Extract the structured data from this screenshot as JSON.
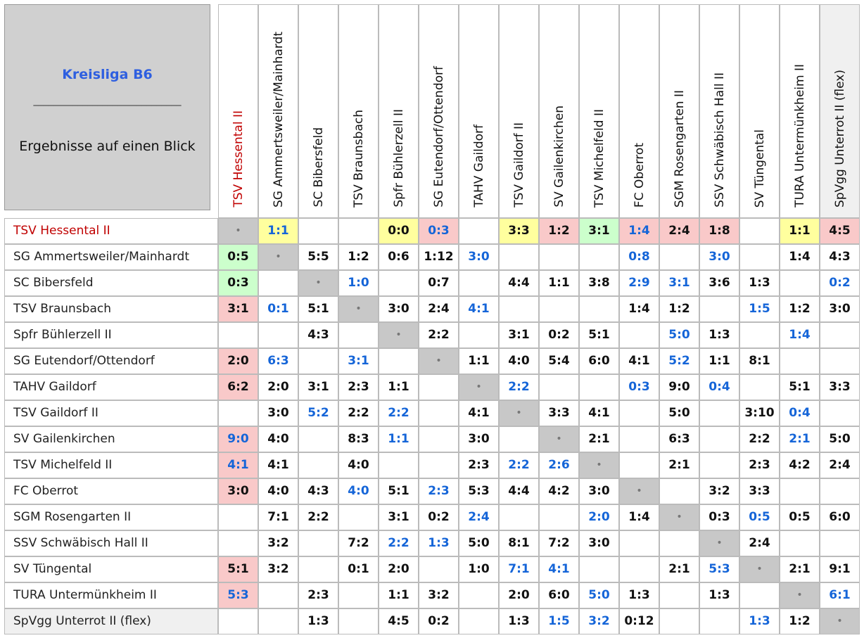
{
  "header": {
    "title": "Kreisliga B6",
    "rule": "______________________________",
    "subtitle": "Ergebnisse auf einen Blick"
  },
  "teams": [
    "TSV Hessental II",
    "SG Ammertsweiler/Mainhardt",
    "SC Bibersfeld",
    "TSV Braunsbach",
    "Spfr Bühlerzell II",
    "SG Eutendorf/Ottendorf",
    "TAHV Gaildorf",
    "TSV Gaildorf II",
    "SV Gailenkirchen",
    "TSV Michelfeld II",
    "FC Oberrot",
    "SGM Rosengarten II",
    "SSV Schwäbisch Hall II",
    "SV Tüngental",
    "TURA Untermünkheim II",
    "SpVgg Unterrot II (flex)"
  ],
  "rows": [
    [
      "•",
      {
        "score": "1:1",
        "color": "#1565d8",
        "bg": "#ffff9e"
      },
      null,
      null,
      {
        "score": "0:0",
        "bg": "#ffff9e"
      },
      {
        "score": "0:3",
        "color": "#1565d8",
        "bg": "#f9c9c9"
      },
      null,
      {
        "score": "3:3",
        "bg": "#ffff9e"
      },
      {
        "score": "1:2",
        "bg": "#f9c9c9"
      },
      {
        "score": "3:1",
        "bg": "#ccffcc"
      },
      {
        "score": "1:4",
        "color": "#1565d8",
        "bg": "#f9c9c9"
      },
      {
        "score": "2:4",
        "bg": "#f9c9c9"
      },
      {
        "score": "1:8",
        "bg": "#f9c9c9"
      },
      null,
      {
        "score": "1:1",
        "bg": "#ffff9e"
      },
      {
        "score": "4:5",
        "bg": "#f9c9c9"
      }
    ],
    [
      {
        "score": "0:5",
        "bg": "#ccffcc"
      },
      "•",
      "5:5",
      "1:2",
      "0:6",
      "1:12",
      {
        "score": "3:0",
        "color": "#1565d8"
      },
      null,
      null,
      null,
      {
        "score": "0:8",
        "color": "#1565d8"
      },
      null,
      {
        "score": "3:0",
        "color": "#1565d8"
      },
      null,
      "1:4",
      "4:3"
    ],
    [
      {
        "score": "0:3",
        "bg": "#ccffcc"
      },
      null,
      "•",
      {
        "score": "1:0",
        "color": "#1565d8"
      },
      null,
      "0:7",
      null,
      "4:4",
      "1:1",
      "3:8",
      {
        "score": "2:9",
        "color": "#1565d8"
      },
      {
        "score": "3:1",
        "color": "#1565d8"
      },
      "3:6",
      "1:3",
      null,
      {
        "score": "0:2",
        "color": "#1565d8"
      }
    ],
    [
      {
        "score": "3:1",
        "bg": "#f9c9c9"
      },
      {
        "score": "0:1",
        "color": "#1565d8"
      },
      "5:1",
      "•",
      "3:0",
      "2:4",
      {
        "score": "4:1",
        "color": "#1565d8"
      },
      null,
      null,
      null,
      "1:4",
      "1:2",
      null,
      {
        "score": "1:5",
        "color": "#1565d8"
      },
      "1:2",
      "3:0"
    ],
    [
      null,
      null,
      "4:3",
      null,
      "•",
      "2:2",
      null,
      "3:1",
      "0:2",
      "5:1",
      null,
      {
        "score": "5:0",
        "color": "#1565d8"
      },
      "1:3",
      null,
      {
        "score": "1:4",
        "color": "#1565d8"
      },
      null
    ],
    [
      {
        "score": "2:0",
        "bg": "#f9c9c9"
      },
      {
        "score": "6:3",
        "color": "#1565d8"
      },
      null,
      {
        "score": "3:1",
        "color": "#1565d8"
      },
      null,
      "•",
      "1:1",
      "4:0",
      "5:4",
      "6:0",
      "4:1",
      {
        "score": "5:2",
        "color": "#1565d8"
      },
      "1:1",
      "8:1",
      null,
      null
    ],
    [
      {
        "score": "6:2",
        "bg": "#f9c9c9"
      },
      "2:0",
      "3:1",
      "2:3",
      "1:1",
      null,
      "•",
      {
        "score": "2:2",
        "color": "#1565d8"
      },
      null,
      null,
      {
        "score": "0:3",
        "color": "#1565d8"
      },
      "9:0",
      {
        "score": "0:4",
        "color": "#1565d8"
      },
      null,
      "5:1",
      "3:3"
    ],
    [
      null,
      "3:0",
      {
        "score": "5:2",
        "color": "#1565d8"
      },
      "2:2",
      {
        "score": "2:2",
        "color": "#1565d8"
      },
      null,
      "4:1",
      "•",
      "3:3",
      "4:1",
      null,
      "5:0",
      null,
      "3:10",
      {
        "score": "0:4",
        "color": "#1565d8"
      },
      null
    ],
    [
      {
        "score": "9:0",
        "color": "#1565d8",
        "bg": "#f9c9c9"
      },
      "4:0",
      null,
      "8:3",
      {
        "score": "1:1",
        "color": "#1565d8"
      },
      null,
      "3:0",
      null,
      "•",
      "2:1",
      null,
      "6:3",
      null,
      "2:2",
      {
        "score": "2:1",
        "color": "#1565d8"
      },
      "5:0"
    ],
    [
      {
        "score": "4:1",
        "color": "#1565d8",
        "bg": "#f9c9c9"
      },
      "4:1",
      null,
      "4:0",
      null,
      null,
      "2:3",
      {
        "score": "2:2",
        "color": "#1565d8"
      },
      {
        "score": "2:6",
        "color": "#1565d8"
      },
      "•",
      null,
      "2:1",
      null,
      "2:3",
      "4:2",
      "2:4"
    ],
    [
      {
        "score": "3:0",
        "bg": "#f9c9c9"
      },
      "4:0",
      "4:3",
      {
        "score": "4:0",
        "color": "#1565d8"
      },
      "5:1",
      {
        "score": "2:3",
        "color": "#1565d8"
      },
      "5:3",
      "4:4",
      "4:2",
      "3:0",
      "•",
      null,
      "3:2",
      "3:3",
      null,
      null
    ],
    [
      null,
      "7:1",
      "2:2",
      null,
      "3:1",
      "0:2",
      {
        "score": "2:4",
        "color": "#1565d8"
      },
      null,
      null,
      {
        "score": "2:0",
        "color": "#1565d8"
      },
      "1:4",
      "•",
      "0:3",
      {
        "score": "0:5",
        "color": "#1565d8"
      },
      "0:5",
      "6:0"
    ],
    [
      null,
      "3:2",
      null,
      "7:2",
      {
        "score": "2:2",
        "color": "#1565d8"
      },
      {
        "score": "1:3",
        "color": "#1565d8"
      },
      "5:0",
      "8:1",
      "7:2",
      "3:0",
      null,
      null,
      "•",
      "2:4",
      null,
      null
    ],
    [
      {
        "score": "5:1",
        "bg": "#f9c9c9"
      },
      "3:2",
      null,
      "0:1",
      "2:0",
      null,
      "1:0",
      {
        "score": "7:1",
        "color": "#1565d8"
      },
      {
        "score": "4:1",
        "color": "#1565d8"
      },
      null,
      null,
      "2:1",
      {
        "score": "5:3",
        "color": "#1565d8"
      },
      "•",
      "2:1",
      "9:1"
    ],
    [
      {
        "score": "5:3",
        "color": "#1565d8",
        "bg": "#f9c9c9"
      },
      null,
      "2:3",
      null,
      "1:1",
      "3:2",
      null,
      "2:0",
      "6:0",
      {
        "score": "5:0",
        "color": "#1565d8"
      },
      "1:3",
      null,
      "1:3",
      null,
      "•",
      {
        "score": "6:1",
        "color": "#1565d8"
      }
    ],
    [
      null,
      null,
      "1:3",
      null,
      "4:5",
      "0:2",
      null,
      "1:3",
      {
        "score": "1:5",
        "color": "#1565d8"
      },
      {
        "score": "3:2",
        "color": "#1565d8"
      },
      "0:12",
      null,
      null,
      {
        "score": "1:3",
        "color": "#1565d8"
      },
      "1:2",
      "•"
    ]
  ]
}
